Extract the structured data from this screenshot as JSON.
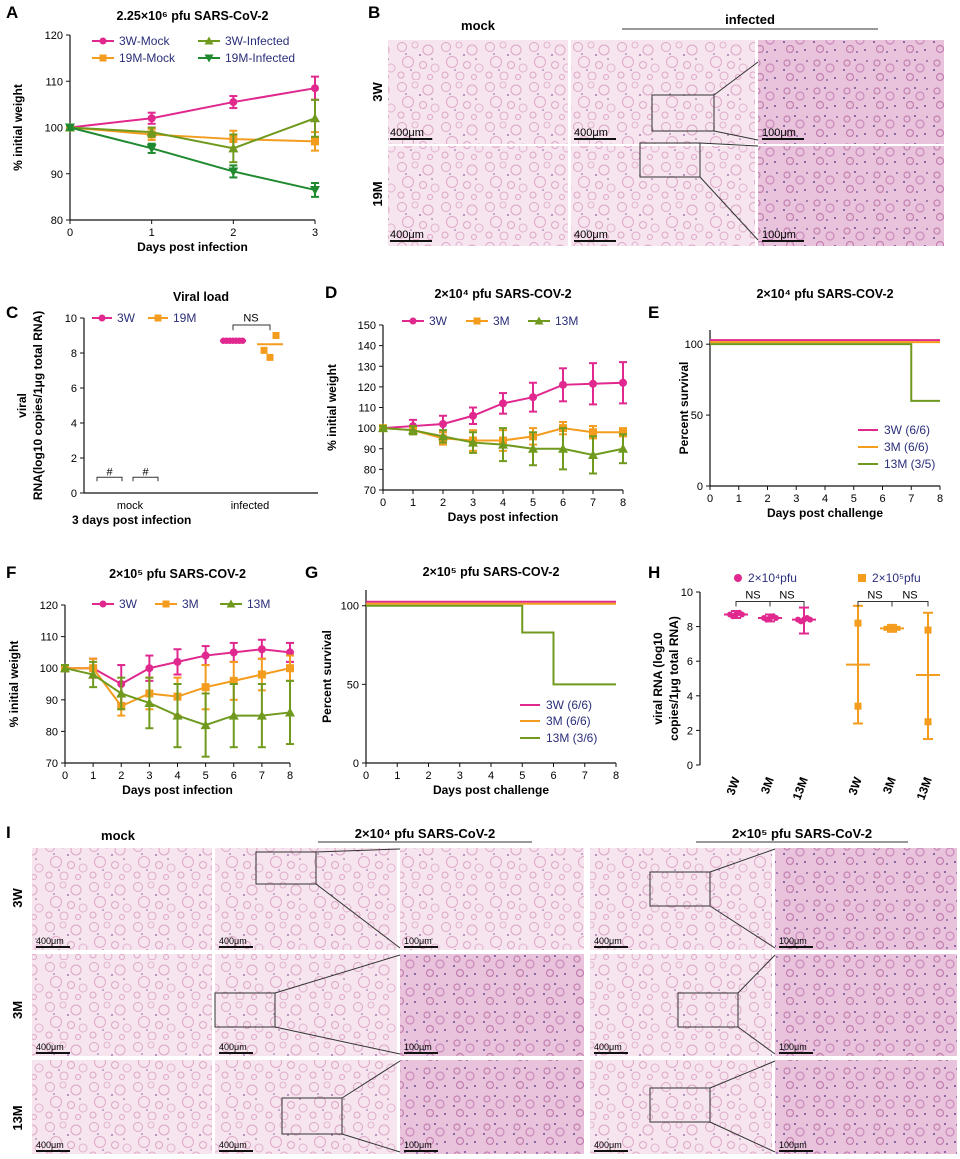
{
  "colors": {
    "pink": "#e0288e",
    "orange": "#f39c1e",
    "green": "#6f9a1e",
    "dkgreen": "#1f8a2f",
    "legend_text": "#2b2f7a"
  },
  "figure_labels": {
    "A": "A",
    "B": "B",
    "C": "C",
    "D": "D",
    "E": "E",
    "F": "F",
    "G": "G",
    "H": "H",
    "I": "I"
  },
  "histology": {
    "b_mock": "mock",
    "b_infected": "infected",
    "b_row1": "3W",
    "b_row2": "19M",
    "i_mock": "mock",
    "i_dose1": "2×10⁴ pfu SARS-CoV-2",
    "i_dose2": "2×10⁵ pfu SARS-CoV-2",
    "i_row1": "3W",
    "i_row2": "3M",
    "i_row3": "13M",
    "sb400": "400μm",
    "sb100": "100μm"
  },
  "chart_data": [
    {
      "id": "A",
      "type": "line",
      "title": "2.25×10⁶ pfu SARS-CoV-2",
      "xlabel": "Days post infection",
      "ylabel": "% initial weight",
      "ylim": [
        80,
        120
      ],
      "yticks": [
        80,
        90,
        100,
        110,
        120
      ],
      "x": [
        0,
        1,
        2,
        3
      ],
      "xticks": [
        0,
        1,
        2,
        3
      ],
      "series": [
        {
          "name": "3W-Mock",
          "color": "pink",
          "marker": "circle",
          "values": [
            100,
            102,
            105.5,
            108.5
          ],
          "err": [
            0.5,
            1.2,
            1.3,
            2.5
          ]
        },
        {
          "name": "19M-Mock",
          "color": "orange",
          "marker": "square",
          "values": [
            100,
            98.5,
            97.5,
            97
          ],
          "err": [
            0.5,
            1.2,
            1.8,
            2.0
          ]
        },
        {
          "name": "3W-Infected",
          "color": "green",
          "marker": "triangle",
          "values": [
            100,
            99,
            95.5,
            102
          ],
          "err": [
            0.5,
            1.0,
            3.0,
            4.0
          ]
        },
        {
          "name": "19M-Infected",
          "color": "dkgreen",
          "marker": "triangle-down",
          "values": [
            100,
            95.5,
            90.5,
            86.5
          ],
          "err": [
            0.5,
            1.0,
            1.3,
            1.5
          ]
        }
      ]
    },
    {
      "id": "C",
      "type": "scatter",
      "title": "Viral load",
      "xlabel": "3 days post infection",
      "ylabel": "viral RNA(log10 copies/1μg total RNA)",
      "ylim": [
        0,
        10
      ],
      "yticks": [
        0,
        2,
        4,
        6,
        8,
        10
      ],
      "categories": [
        "mock",
        "infected"
      ],
      "annotation": "NS",
      "nd_marker": "#",
      "series": [
        {
          "name": "3W",
          "color": "pink",
          "marker": "circle",
          "values": [
            null,
            8.7
          ]
        },
        {
          "name": "19M",
          "color": "orange",
          "marker": "square",
          "values": [
            null,
            8.5
          ]
        }
      ]
    },
    {
      "id": "D",
      "type": "line",
      "title": "2×10⁴ pfu SARS-COV-2",
      "xlabel": "Days post infection",
      "ylabel": "% initial weight",
      "ylim": [
        70,
        150
      ],
      "yticks": [
        70,
        80,
        90,
        100,
        110,
        120,
        130,
        140,
        150
      ],
      "x": [
        0,
        1,
        2,
        3,
        4,
        5,
        6,
        7,
        8
      ],
      "xticks": [
        0,
        1,
        2,
        3,
        4,
        5,
        6,
        7,
        8
      ],
      "series": [
        {
          "name": "3W",
          "color": "pink",
          "marker": "circle",
          "values": [
            100,
            101,
            102,
            106,
            112,
            115,
            121,
            121.5,
            122
          ],
          "err": [
            1,
            3,
            4,
            4,
            5,
            7,
            8,
            10,
            10
          ]
        },
        {
          "name": "3M",
          "color": "orange",
          "marker": "square",
          "values": [
            100,
            99,
            95,
            94,
            94,
            96,
            100,
            98,
            98
          ],
          "err": [
            1,
            2,
            3,
            5,
            5,
            4,
            3,
            3,
            2
          ]
        },
        {
          "name": "13M",
          "color": "green",
          "marker": "triangle",
          "values": [
            100,
            99,
            96,
            93,
            92,
            90,
            90,
            87,
            90
          ],
          "err": [
            1,
            2,
            3,
            5,
            8,
            8,
            10,
            9,
            7
          ]
        }
      ]
    },
    {
      "id": "E",
      "type": "line",
      "title": "2×10⁴ pfu SARS-COV-2",
      "xlabel": "Days post challenge",
      "ylabel": "Percent survival",
      "ylim": [
        0,
        110
      ],
      "yticks": [
        0,
        50,
        100
      ],
      "x": [
        0,
        1,
        2,
        3,
        4,
        5,
        6,
        7,
        8
      ],
      "xticks": [
        0,
        1,
        2,
        3,
        4,
        5,
        6,
        7,
        8
      ],
      "series": [
        {
          "name": "3W (6/6)",
          "color": "pink",
          "step_x": [
            0,
            8
          ],
          "step_y": [
            100,
            100
          ]
        },
        {
          "name": "3M (6/6)",
          "color": "orange",
          "step_x": [
            0,
            8
          ],
          "step_y": [
            100,
            100
          ]
        },
        {
          "name": "13M (3/5)",
          "color": "green",
          "step_x": [
            0,
            7,
            8
          ],
          "step_y": [
            100,
            60,
            60
          ]
        }
      ]
    },
    {
      "id": "F",
      "type": "line",
      "title": "2×10⁵ pfu SARS-COV-2",
      "xlabel": "Days post infection",
      "ylabel": "% initial weight",
      "ylim": [
        70,
        120
      ],
      "yticks": [
        70,
        80,
        90,
        100,
        110,
        120
      ],
      "x": [
        0,
        1,
        2,
        3,
        4,
        5,
        6,
        7,
        8
      ],
      "xticks": [
        0,
        1,
        2,
        3,
        4,
        5,
        6,
        7,
        8
      ],
      "series": [
        {
          "name": "3W",
          "color": "pink",
          "marker": "circle",
          "values": [
            100,
            100,
            95,
            100,
            102,
            104,
            105,
            106,
            105
          ],
          "err": [
            1,
            3,
            6,
            4,
            4,
            3,
            3,
            3,
            3
          ]
        },
        {
          "name": "3M",
          "color": "orange",
          "marker": "square",
          "values": [
            100,
            100,
            88,
            92,
            91,
            94,
            96,
            98,
            100
          ],
          "err": [
            1,
            3,
            3,
            5,
            6,
            7,
            6,
            5,
            4
          ]
        },
        {
          "name": "13M",
          "color": "green",
          "marker": "triangle",
          "values": [
            100,
            98,
            92,
            89,
            85,
            82,
            85,
            85,
            86
          ],
          "err": [
            1,
            4,
            5,
            8,
            10,
            10,
            10,
            10,
            10
          ]
        }
      ]
    },
    {
      "id": "G",
      "type": "line",
      "title": "2×10⁵ pfu SARS-COV-2",
      "xlabel": "Days post challenge",
      "ylabel": "Percent survival",
      "ylim": [
        0,
        110
      ],
      "yticks": [
        0,
        50,
        100
      ],
      "x": [
        0,
        1,
        2,
        3,
        4,
        5,
        6,
        7,
        8
      ],
      "xticks": [
        0,
        1,
        2,
        3,
        4,
        5,
        6,
        7,
        8
      ],
      "series": [
        {
          "name": "3W (6/6)",
          "color": "pink",
          "step_x": [
            0,
            8
          ],
          "step_y": [
            100,
            100
          ]
        },
        {
          "name": "3M (6/6)",
          "color": "orange",
          "step_x": [
            0,
            8
          ],
          "step_y": [
            100,
            100
          ]
        },
        {
          "name": "13M (3/6)",
          "color": "green",
          "step_x": [
            0,
            5,
            6,
            8
          ],
          "step_y": [
            100,
            83,
            50,
            50
          ]
        }
      ]
    },
    {
      "id": "H",
      "type": "scatter",
      "title": "",
      "xlabel": "",
      "ylabel": "viral RNA (log10 copies/1μg total RNA)",
      "ylim": [
        0,
        10
      ],
      "yticks": [
        0,
        2,
        4,
        6,
        8,
        10
      ],
      "categories": [
        "3W",
        "3M",
        "13M",
        "3W",
        "3M",
        "13M"
      ],
      "annotation": "NS",
      "series": [
        {
          "name": "2×10⁴pfu",
          "color": "pink",
          "marker": "circle",
          "groups": [
            {
              "mean": 8.7,
              "lo": 8.5,
              "hi": 8.9
            },
            {
              "mean": 8.5,
              "lo": 8.3,
              "hi": 8.7
            },
            {
              "mean": 8.4,
              "lo": 7.6,
              "hi": 9.1
            }
          ]
        },
        {
          "name": "2×10⁵pfu",
          "color": "orange",
          "marker": "square",
          "groups": [
            {
              "mean": 5.8,
              "lo": 2.4,
              "hi": 9.2
            },
            {
              "mean": 7.9,
              "lo": 7.7,
              "hi": 8.1
            },
            {
              "mean": 5.2,
              "lo": 1.5,
              "hi": 8.8
            }
          ]
        }
      ]
    }
  ]
}
